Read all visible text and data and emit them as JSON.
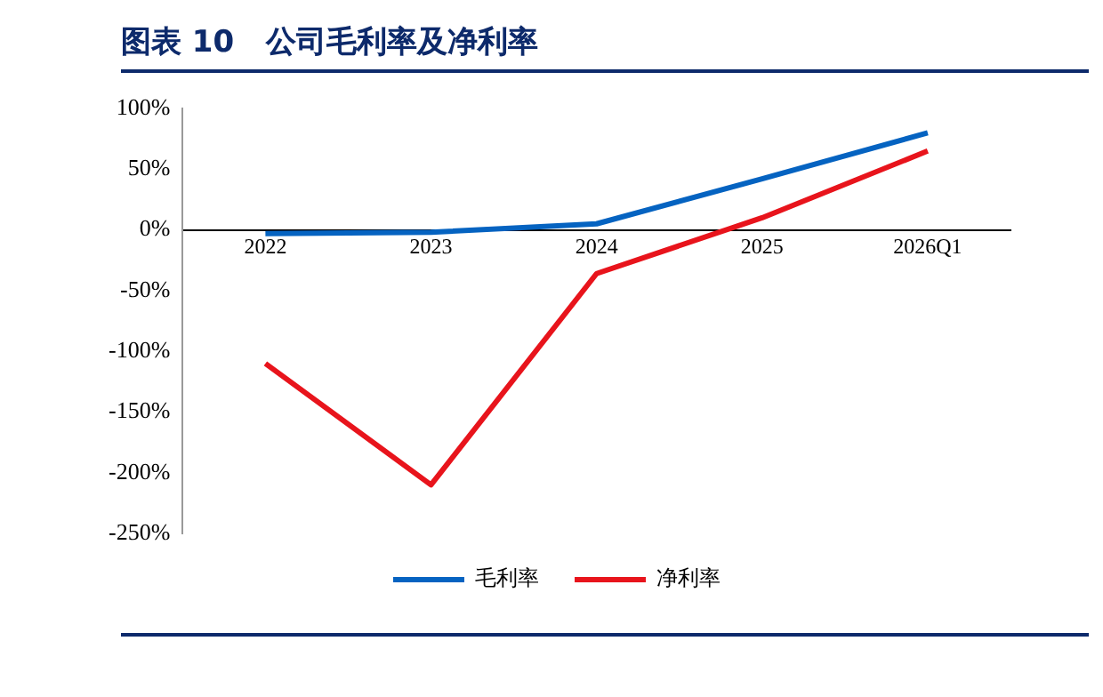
{
  "chart_data": {
    "type": "line",
    "title": "图表 10   公司毛利率及净利率",
    "categories": [
      "2022",
      "2023",
      "2024",
      "2025",
      "2026Q1"
    ],
    "series": [
      {
        "name": "毛利率",
        "color": "#0563c1",
        "values": [
          -3,
          -2,
          5,
          42,
          80
        ]
      },
      {
        "name": "净利率",
        "color": "#e8141c",
        "values": [
          -110,
          -210,
          -36,
          10,
          65
        ]
      }
    ],
    "ylim": [
      -250,
      100
    ],
    "yticks": [
      {
        "value": -250,
        "label": "-250%"
      },
      {
        "value": -200,
        "label": "-200%"
      },
      {
        "value": -150,
        "label": "-150%"
      },
      {
        "value": -100,
        "label": "-100%"
      },
      {
        "value": -50,
        "label": "-50%"
      },
      {
        "value": 0,
        "label": "0%"
      },
      {
        "value": 50,
        "label": "50%"
      },
      {
        "value": 100,
        "label": "100%"
      }
    ],
    "legend": "bottom",
    "marker": "none",
    "line_style": "solid"
  }
}
